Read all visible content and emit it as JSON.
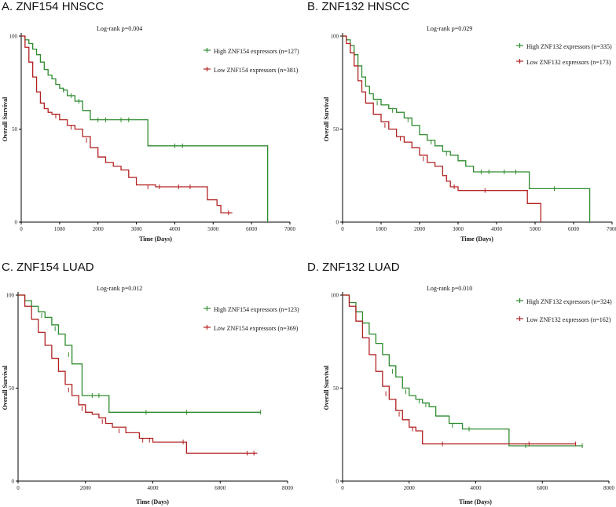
{
  "chart_data": [
    {
      "type": "line",
      "title": "A. ZNF154 HNSCC",
      "xlabel": "Time (Days)",
      "ylabel": "Overall Survival",
      "xlim": [
        0,
        7000
      ],
      "ylim": [
        0,
        100
      ],
      "xticks": [
        "0",
        "1000",
        "2000",
        "3000",
        "4000",
        "5000",
        "6000",
        "7000"
      ],
      "yticks": [
        "0",
        "50",
        "100"
      ],
      "pvalue": "Log-rank p=0.004",
      "legend_position": "top-right",
      "series": [
        {
          "name": "High ZNF154 expressors (n=127)",
          "color": "#2e8b2e",
          "x": [
            0,
            100,
            200,
            300,
            400,
            500,
            600,
            700,
            800,
            900,
            1000,
            1100,
            1200,
            1400,
            1600,
            1800,
            1900,
            2500,
            3300,
            3400,
            6400,
            6420
          ],
          "y": [
            100,
            98,
            96,
            93,
            90,
            86,
            82,
            79,
            77,
            74,
            72,
            71,
            68,
            65,
            60,
            55,
            55,
            55,
            41,
            41,
            41,
            0
          ],
          "censor_x": [
            1100,
            1300,
            1500,
            2000,
            2200,
            2600,
            2800,
            4000,
            4200
          ],
          "censor_y": [
            71,
            68,
            65,
            55,
            55,
            55,
            55,
            41,
            41
          ]
        },
        {
          "name": "Low ZNF154 expressors (n=381)",
          "color": "#b22222",
          "x": [
            0,
            100,
            200,
            300,
            400,
            500,
            600,
            700,
            800,
            1000,
            1200,
            1400,
            1600,
            1800,
            2000,
            2200,
            2400,
            2600,
            2800,
            3000,
            3500,
            4000,
            4500,
            4800,
            4850,
            5100,
            5200,
            5500
          ],
          "y": [
            100,
            94,
            86,
            78,
            70,
            64,
            61,
            59,
            58,
            55,
            52,
            50,
            46,
            40,
            35,
            32,
            30,
            28,
            24,
            20,
            19,
            19,
            19,
            19,
            12,
            9,
            5,
            5
          ],
          "censor_x": [
            900,
            1300,
            1700,
            3300,
            3600,
            4100,
            4400,
            5400
          ],
          "censor_y": [
            57,
            51,
            44,
            19,
            19,
            19,
            19,
            5
          ]
        }
      ]
    },
    {
      "type": "line",
      "title": "B. ZNF132 HNSCC",
      "xlabel": "Time (Days)",
      "ylabel": "Overall Survival",
      "xlim": [
        0,
        7000
      ],
      "ylim": [
        0,
        100
      ],
      "xticks": [
        "0",
        "1000",
        "2000",
        "3000",
        "4000",
        "5000",
        "6000",
        "7000"
      ],
      "yticks": [
        "0",
        "50",
        "100"
      ],
      "pvalue": "Log-rank p=0.029",
      "legend_position": "top-right",
      "series": [
        {
          "name": "High ZNF132 expressors (n=335)",
          "color": "#2e8b2e",
          "x": [
            0,
            100,
            200,
            300,
            400,
            500,
            600,
            700,
            800,
            1000,
            1200,
            1400,
            1600,
            1800,
            2000,
            2200,
            2400,
            2600,
            2800,
            3000,
            3200,
            3400,
            4000,
            4800,
            4850,
            6400,
            6420
          ],
          "y": [
            100,
            98,
            95,
            90,
            84,
            78,
            73,
            69,
            66,
            63,
            61,
            59,
            56,
            52,
            47,
            44,
            41,
            38,
            36,
            33,
            30,
            27,
            27,
            27,
            18,
            18,
            0
          ],
          "censor_x": [
            900,
            1300,
            1700,
            2300,
            2700,
            3600,
            3800,
            4200,
            4500,
            5500
          ],
          "censor_y": [
            64,
            60,
            55,
            43,
            37,
            27,
            27,
            27,
            27,
            18
          ],
          "end_x": 6420
        },
        {
          "name": "Low ZNF132 expressors (n=173)",
          "color": "#b22222",
          "x": [
            0,
            100,
            200,
            300,
            400,
            500,
            600,
            800,
            1000,
            1200,
            1400,
            1600,
            1800,
            2000,
            2200,
            2400,
            2600,
            2700,
            2800,
            3000,
            4000,
            4700,
            4800,
            5100,
            5150
          ],
          "y": [
            100,
            96,
            91,
            84,
            76,
            70,
            64,
            58,
            54,
            50,
            46,
            43,
            40,
            36,
            32,
            30,
            25,
            22,
            19,
            17,
            17,
            17,
            10,
            10,
            0
          ],
          "censor_x": [
            1100,
            1500,
            2100,
            2900,
            3700
          ],
          "censor_y": [
            52,
            45,
            34,
            19,
            17
          ]
        }
      ]
    },
    {
      "type": "line",
      "title": "C. ZNF154 LUAD",
      "xlabel": "Time (Days)",
      "ylabel": "Overall Survival",
      "xlim": [
        0,
        8000
      ],
      "ylim": [
        0,
        100
      ],
      "xticks": [
        "0",
        "2000",
        "4000",
        "6000",
        "8000"
      ],
      "yticks": [
        "0",
        "50",
        "100"
      ],
      "pvalue": "Log-rank p=0.012",
      "legend_position": "top-right",
      "series": [
        {
          "name": "High ZNF154 expressors (n=123)",
          "color": "#2e8b2e",
          "x": [
            0,
            200,
            400,
            600,
            800,
            1000,
            1200,
            1400,
            1600,
            1800,
            1900,
            2600,
            2700,
            7200
          ],
          "y": [
            100,
            97,
            94,
            91,
            88,
            84,
            79,
            73,
            63,
            63,
            46,
            46,
            37,
            37
          ],
          "censor_x": [
            700,
            1100,
            1500,
            2200,
            2400,
            3800,
            5000,
            7200
          ],
          "censor_y": [
            89,
            82,
            68,
            46,
            46,
            37,
            37,
            37
          ]
        },
        {
          "name": "Low ZNF154 expressors (n=369)",
          "color": "#b22222",
          "x": [
            0,
            200,
            400,
            600,
            800,
            1000,
            1200,
            1400,
            1600,
            1800,
            2000,
            2200,
            2400,
            2600,
            2800,
            3200,
            3600,
            4000,
            4600,
            5000,
            5500,
            6000,
            7100
          ],
          "y": [
            100,
            94,
            87,
            80,
            73,
            66,
            59,
            52,
            46,
            41,
            37,
            36,
            34,
            31,
            29,
            26,
            23,
            21,
            21,
            15,
            15,
            15,
            15
          ],
          "censor_x": [
            1500,
            1900,
            2500,
            3000,
            3700,
            3900,
            4900,
            6800,
            7000
          ],
          "censor_y": [
            49,
            39,
            32,
            27,
            22,
            22,
            21,
            15,
            15
          ]
        }
      ]
    },
    {
      "type": "line",
      "title": "D. ZNF132 LUAD",
      "xlabel": "Time (Days)",
      "ylabel": "Overall Survival",
      "xlim": [
        0,
        8000
      ],
      "ylim": [
        0,
        100
      ],
      "xticks": [
        "0",
        "2000",
        "4000",
        "6000",
        "8000"
      ],
      "yticks": [
        "0",
        "50",
        "100"
      ],
      "pvalue": "Log-rank p=0.010",
      "legend_position": "top-right",
      "series": [
        {
          "name": "High ZNF132 expressors (n=324)",
          "color": "#2e8b2e",
          "x": [
            0,
            200,
            400,
            600,
            800,
            1000,
            1200,
            1400,
            1600,
            1800,
            2000,
            2200,
            2400,
            2600,
            2800,
            3200,
            3600,
            4000,
            4900,
            5000,
            7200
          ],
          "y": [
            100,
            96,
            91,
            85,
            79,
            74,
            68,
            62,
            56,
            50,
            46,
            44,
            42,
            40,
            35,
            31,
            28,
            28,
            28,
            19,
            19
          ],
          "censor_x": [
            1500,
            1900,
            2300,
            2500,
            3300,
            3800,
            5500,
            7200
          ],
          "censor_y": [
            59,
            48,
            43,
            41,
            30,
            28,
            19,
            19
          ]
        },
        {
          "name": "Low ZNF132 expressors (n=162)",
          "color": "#b22222",
          "x": [
            0,
            200,
            400,
            600,
            800,
            1000,
            1200,
            1400,
            1600,
            1800,
            2000,
            2200,
            2400,
            3000,
            4000,
            5000,
            6000,
            7000
          ],
          "y": [
            100,
            94,
            86,
            77,
            68,
            59,
            51,
            44,
            38,
            33,
            29,
            27,
            20,
            20,
            20,
            20,
            20,
            20
          ],
          "censor_x": [
            1300,
            1700,
            2100,
            3000,
            5600,
            7000
          ],
          "censor_y": [
            47,
            36,
            28,
            20,
            20,
            20
          ]
        }
      ]
    }
  ]
}
